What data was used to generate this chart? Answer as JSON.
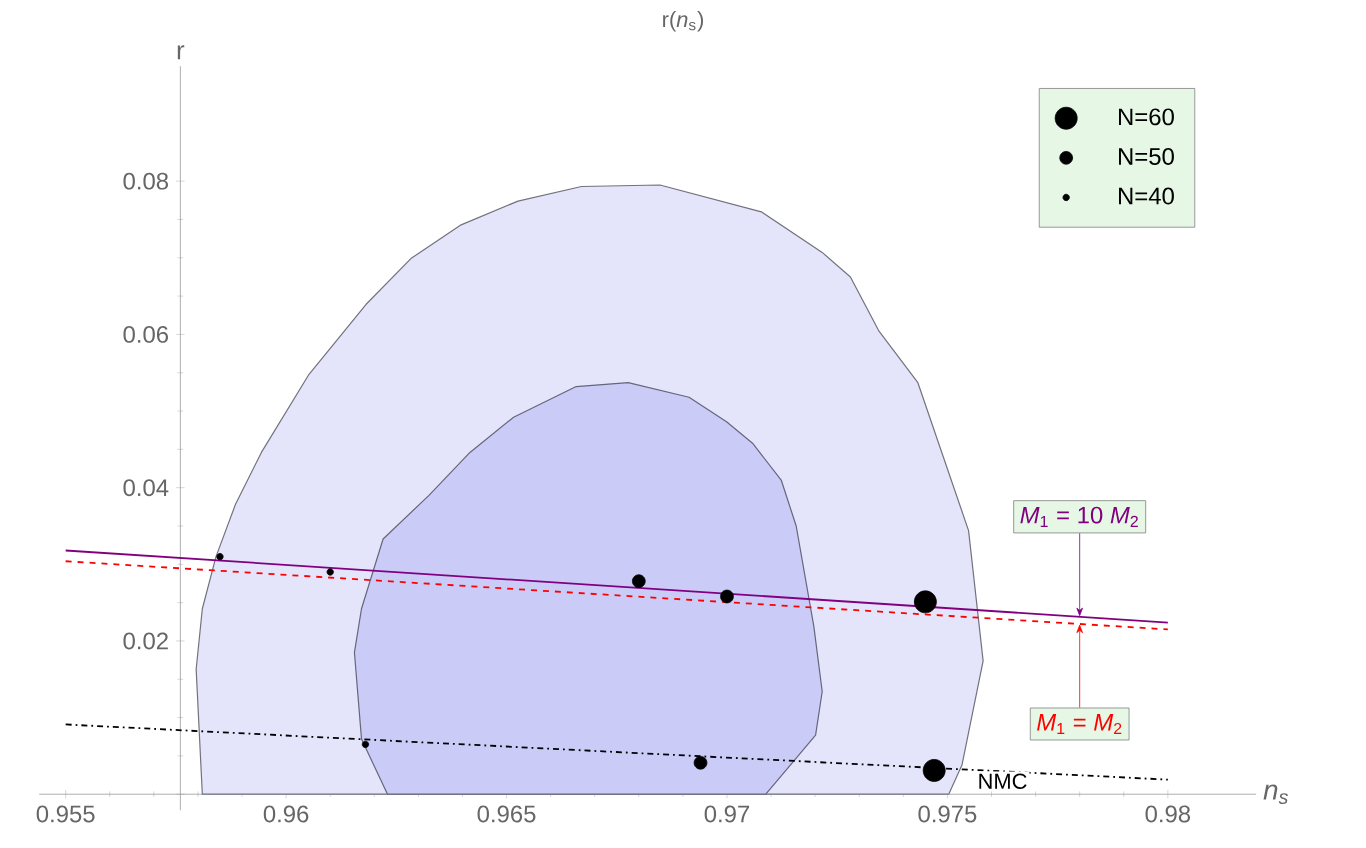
{
  "chart_data": {
    "type": "scatter",
    "title": "r(*n*$_{s}$)",
    "xlabel": "n$_{s}$",
    "ylabel": "r",
    "xlim": [
      0.9544,
      0.982
    ],
    "ylim": [
      0,
      0.095
    ],
    "xticks": [
      0.955,
      0.96,
      0.965,
      0.97,
      0.975,
      0.98
    ],
    "yticks": [
      {
        "value": 0,
        "label": null
      },
      0.02,
      0.04,
      0.06,
      0.08
    ],
    "legend": "top right",
    "grid": false,
    "series": [
      {
        "type": "area",
        "color": "#e4e4fa",
        "x": [
          0.9581,
          0.95796,
          0.9581,
          0.95841,
          0.95885,
          0.95944,
          0.96052,
          0.96181,
          0.96283,
          0.96397,
          0.96526,
          0.9667,
          0.96848,
          0.97078,
          0.97216,
          0.9728,
          0.97344,
          0.97433,
          0.97548,
          0.97581,
          0.97533,
          0.97503
        ],
        "values": [
          0,
          0.0163,
          0.0242,
          0.031,
          0.0378,
          0.0446,
          0.0548,
          0.0639,
          0.0699,
          0.0743,
          0.0774,
          0.0793,
          0.0795,
          0.076,
          0.0707,
          0.0675,
          0.0605,
          0.0537,
          0.0344,
          0.0174,
          0.0038,
          0
        ]
      },
      {
        "type": "area",
        "color": "#cbcbf8",
        "x": [
          0.9623,
          0.96171,
          0.96155,
          0.96171,
          0.9622,
          0.96324,
          0.96417,
          0.96516,
          0.96658,
          0.96776,
          0.96914,
          0.96999,
          0.97058,
          0.97123,
          0.97157,
          0.97197,
          0.97216,
          0.97201,
          0.97088
        ],
        "values": [
          0,
          0.0072,
          0.0185,
          0.0242,
          0.0333,
          0.039,
          0.0446,
          0.0492,
          0.0532,
          0.0537,
          0.0518,
          0.0486,
          0.0458,
          0.041,
          0.035,
          0.0219,
          0.0134,
          0.0077,
          0
        ]
      },
      {
        "type": "line",
        "name": "*M*$_{1}$ = 10 *M*$_{2}$",
        "color": "#800080",
        "line_style": "solid",
        "x": [
          0.955,
          0.98
        ],
        "values": [
          0.0318,
          0.0224
        ]
      },
      {
        "type": "line",
        "name": "*M*$_{1}$ = *M*$_{2}$",
        "color": "#ff0000",
        "line_style": "dashed",
        "x": [
          0.955,
          0.98
        ],
        "values": [
          0.0304,
          0.0215
        ]
      },
      {
        "type": "line",
        "name": "NMC",
        "color": "#000000",
        "line_style": "dashdotted",
        "x": [
          0.955,
          0.98
        ],
        "values": [
          0.0091,
          0.0019
        ]
      },
      {
        "name": "N=60",
        "color": "#000000",
        "x": [
          0.9745,
          0.9747
        ],
        "values": [
          0.0251,
          0.0031
        ]
      },
      {
        "name": "N=50",
        "color": "#000000",
        "x": [
          0.968,
          0.97,
          0.9694
        ],
        "values": [
          0.0278,
          0.0258,
          0.0041
        ]
      },
      {
        "name": "N=40",
        "color": "#000000",
        "x": [
          0.9585,
          0.961,
          0.9618
        ],
        "values": [
          0.031,
          0.029,
          0.0065
        ]
      }
    ]
  }
}
